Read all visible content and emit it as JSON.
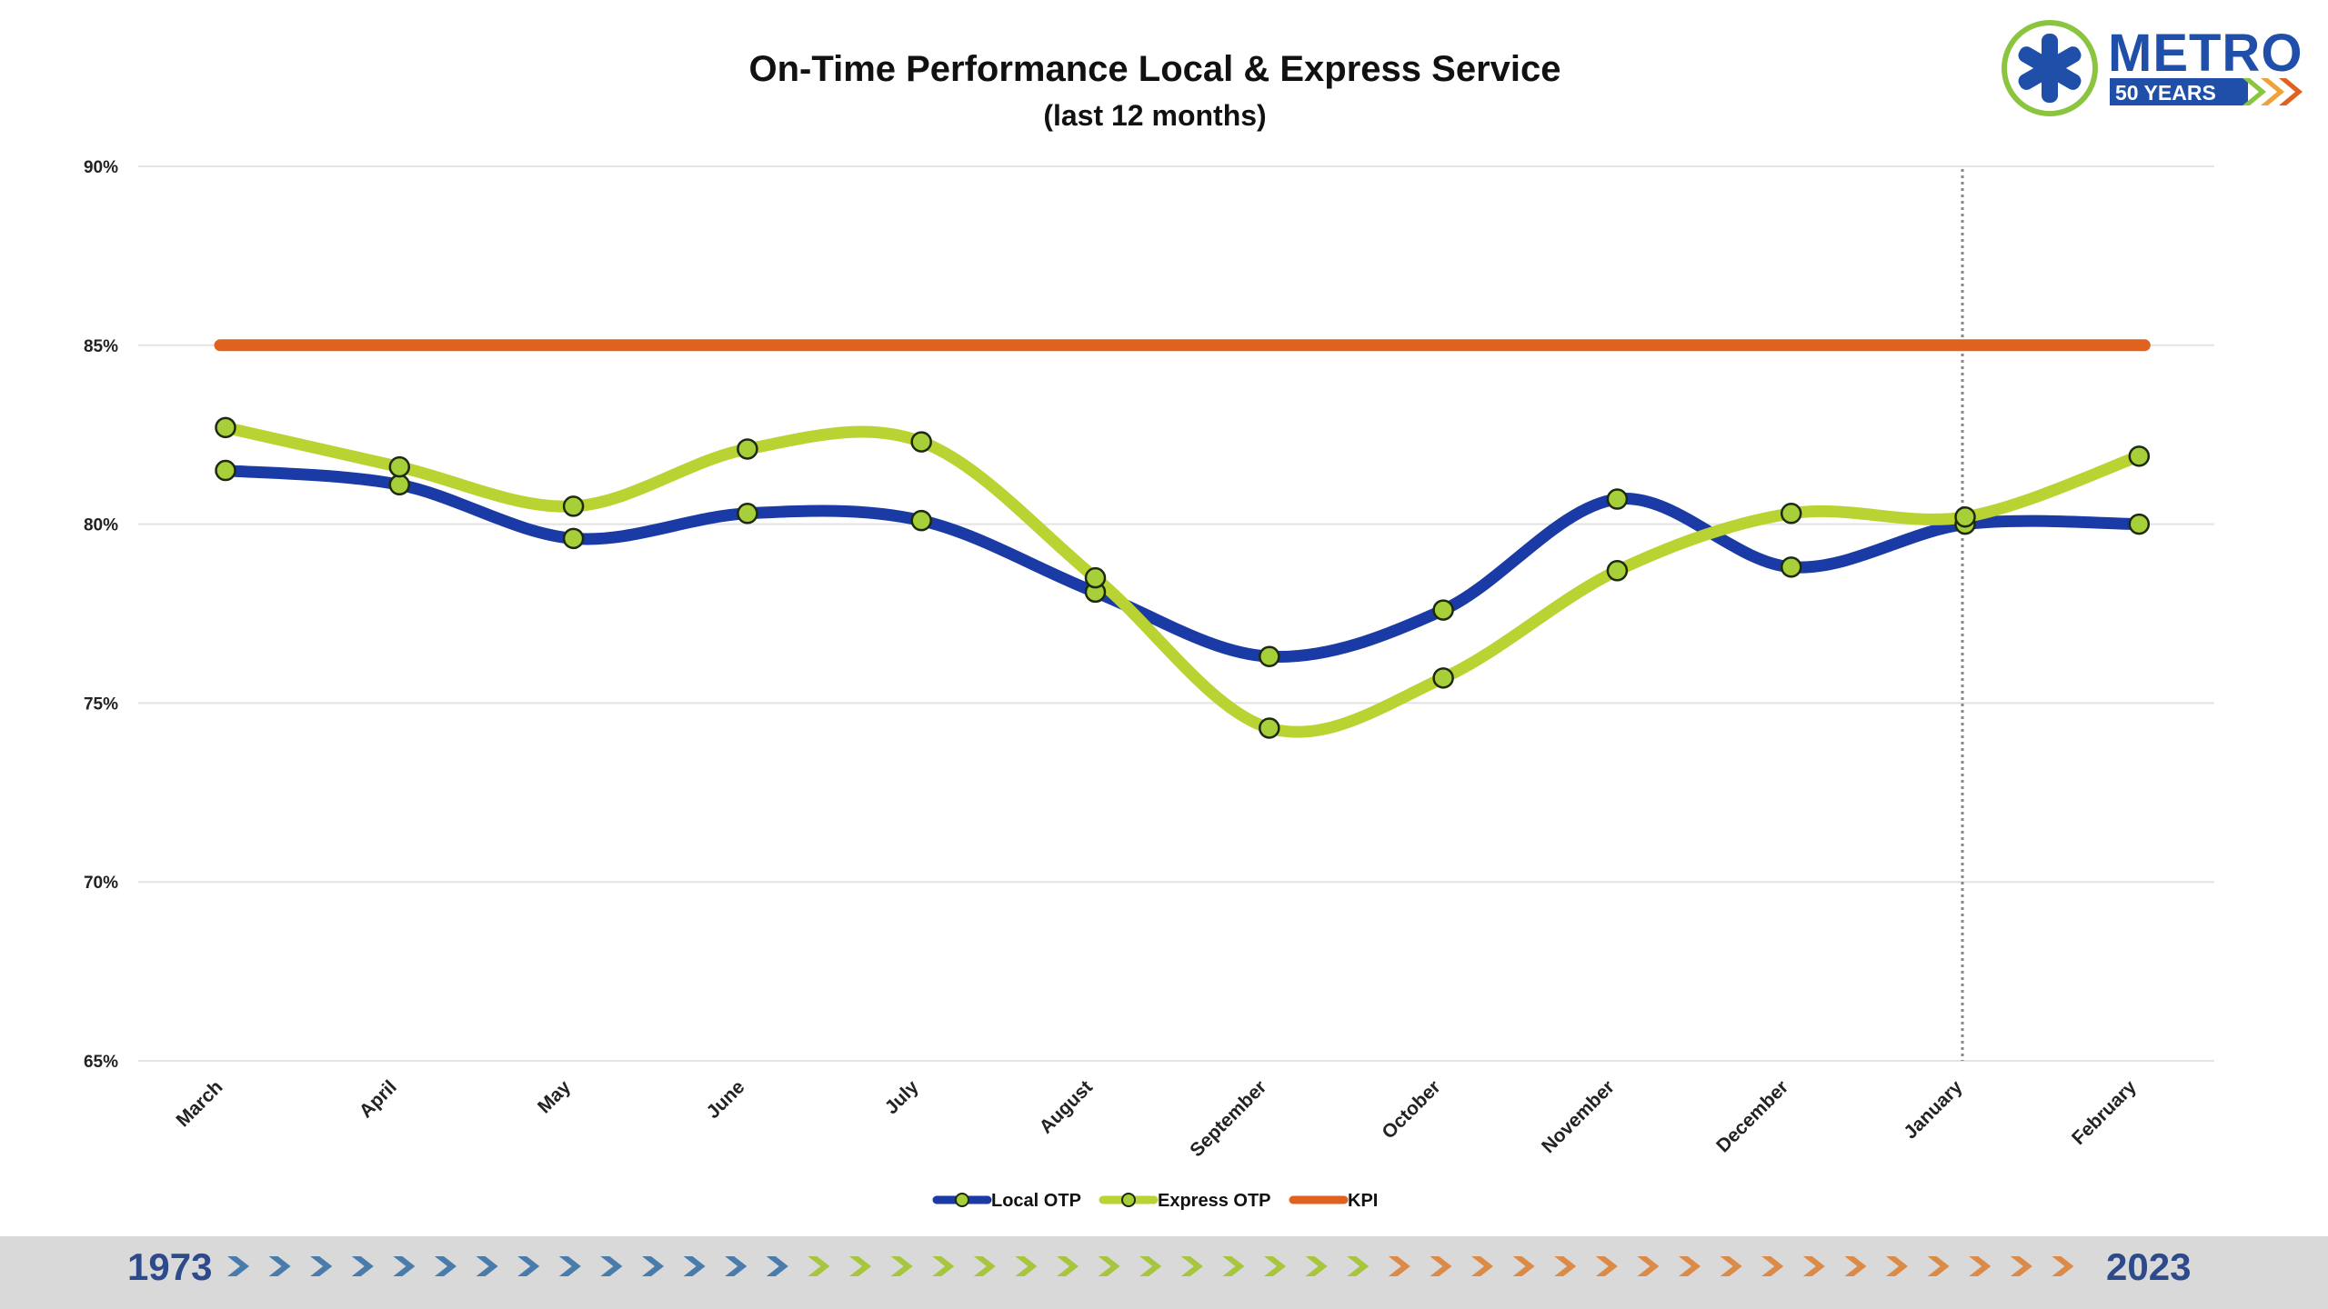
{
  "colors": {
    "local": "#1a3aa6",
    "express": "#b9d332",
    "kpi": "#e0621f",
    "marker_fill": "#a6cf3a",
    "marker_stroke": "#1e2a10",
    "grid": "#e3e3e3",
    "cursor": "#888888",
    "footer_bg": "#d9d9d9",
    "arrow_blue": "#4a7cab",
    "arrow_green": "#a7c63e",
    "arrow_orange": "#dc8a48",
    "logo_blue": "#1f4fa8",
    "logo_green": "#8bc53f"
  },
  "logo": {
    "text": "METRO",
    "years": "50 YEARS",
    "icon": "metro-asterisk-icon"
  },
  "footer": {
    "start_year": "1973",
    "end_year": "2023"
  },
  "chart_data": {
    "type": "line",
    "title": "On-Time Performance Local & Express Service",
    "subtitle": "(last 12 months)",
    "xlabel": "",
    "ylabel": "",
    "ylim": [
      65,
      90
    ],
    "yticks": [
      90,
      85,
      80,
      75,
      70,
      65
    ],
    "ytick_labels": [
      "90%",
      "85%",
      "80%",
      "75%",
      "70%",
      "65%"
    ],
    "categories": [
      "March",
      "April",
      "May",
      "June",
      "July",
      "August",
      "September",
      "October",
      "November",
      "December",
      "January",
      "February"
    ],
    "grid": true,
    "legend_position": "bottom",
    "highlight_category": "January",
    "series": [
      {
        "name": "Local OTP",
        "values": [
          81.5,
          81.1,
          79.6,
          80.3,
          80.1,
          78.1,
          76.3,
          77.6,
          80.7,
          78.8,
          80.0,
          80.0
        ]
      },
      {
        "name": "Express OTP",
        "values": [
          82.7,
          81.6,
          80.5,
          82.1,
          82.3,
          78.5,
          74.3,
          75.7,
          78.7,
          80.3,
          80.2,
          81.9
        ]
      },
      {
        "name": "KPI",
        "values": [
          85,
          85,
          85,
          85,
          85,
          85,
          85,
          85,
          85,
          85,
          85,
          85
        ]
      }
    ]
  }
}
